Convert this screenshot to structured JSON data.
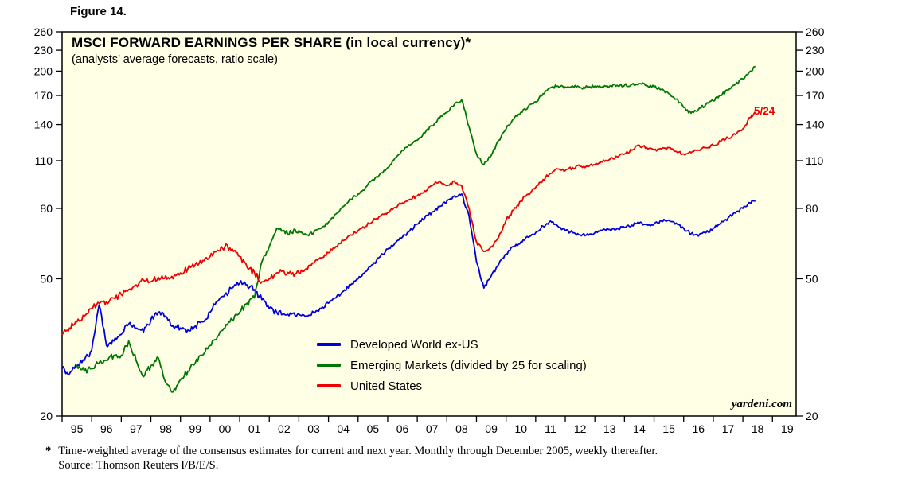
{
  "figure_label": "Figure 14.",
  "chart": {
    "title": "MSCI FORWARD EARNINGS PER SHARE (in local currency)*",
    "subtitle": "(analysts’ average forecasts, ratio scale)",
    "watermark": "yardeni.com",
    "annotation": "5/24",
    "colors": {
      "plot_bg": "#ffffe6",
      "border": "#000000",
      "developed": "#0000dd",
      "emerging": "#007700",
      "us": "#ee0000"
    }
  },
  "legend": [
    {
      "label": "Developed World ex-US",
      "color": "#0000dd"
    },
    {
      "label": "Emerging Markets (divided by 25 for scaling)",
      "color": "#007700"
    },
    {
      "label": "United States",
      "color": "#ee0000"
    }
  ],
  "footnote": {
    "marker": "*",
    "line1": "Time-weighted average of the consensus estimates for current and next year. Monthly through December 2005, weekly thereafter.",
    "line2": "Source: Thomson Reuters I/B/E/S."
  },
  "chart_data": {
    "type": "line",
    "scale": "log",
    "title": "MSCI FORWARD EARNINGS PER SHARE (in local currency)",
    "subtitle": "analysts' average forecasts, ratio scale",
    "ylim": [
      20,
      260
    ],
    "yticks": [
      20,
      50,
      80,
      110,
      140,
      170,
      200,
      230,
      260
    ],
    "xlim": [
      1995,
      2019.8
    ],
    "xtick_labels": [
      "95",
      "96",
      "97",
      "98",
      "99",
      "00",
      "01",
      "02",
      "03",
      "04",
      "05",
      "06",
      "07",
      "08",
      "09",
      "10",
      "11",
      "12",
      "13",
      "14",
      "15",
      "16",
      "17",
      "18",
      "19"
    ],
    "annotation": {
      "text": "5/24",
      "x": 2018.4,
      "y": 152,
      "series": "United States"
    },
    "x": [
      1995.0,
      1995.25,
      1995.5,
      1995.75,
      1996.0,
      1996.25,
      1996.5,
      1996.75,
      1997.0,
      1997.25,
      1997.5,
      1997.75,
      1998.0,
      1998.25,
      1998.5,
      1998.75,
      1999.0,
      1999.25,
      1999.5,
      1999.75,
      2000.0,
      2000.25,
      2000.5,
      2000.75,
      2001.0,
      2001.25,
      2001.5,
      2001.75,
      2002.0,
      2002.25,
      2002.5,
      2002.75,
      2003.0,
      2003.25,
      2003.5,
      2003.75,
      2004.0,
      2004.25,
      2004.5,
      2004.75,
      2005.0,
      2005.25,
      2005.5,
      2005.75,
      2006.0,
      2006.25,
      2006.5,
      2006.75,
      2007.0,
      2007.25,
      2007.5,
      2007.75,
      2008.0,
      2008.25,
      2008.5,
      2008.75,
      2009.0,
      2009.25,
      2009.5,
      2009.75,
      2010.0,
      2010.25,
      2010.5,
      2010.75,
      2011.0,
      2011.25,
      2011.5,
      2011.75,
      2012.0,
      2012.25,
      2012.5,
      2012.75,
      2013.0,
      2013.25,
      2013.5,
      2013.75,
      2014.0,
      2014.25,
      2014.5,
      2014.75,
      2015.0,
      2015.25,
      2015.5,
      2015.75,
      2016.0,
      2016.25,
      2016.5,
      2016.75,
      2017.0,
      2017.25,
      2017.5,
      2017.75,
      2018.0,
      2018.25,
      2018.4
    ],
    "series": [
      {
        "name": "Developed World ex-US",
        "color": "#0000dd",
        "values": [
          27.5,
          26.5,
          28,
          29,
          31,
          42,
          32,
          33,
          34.5,
          37,
          36,
          35,
          38,
          40,
          39,
          36.5,
          36,
          35.5,
          36.5,
          37.5,
          40,
          43,
          45,
          47,
          48.5,
          48,
          46.5,
          43.5,
          41,
          40,
          39.5,
          39.5,
          39.5,
          39,
          40,
          41,
          42.5,
          44,
          46,
          48,
          50,
          52.5,
          55,
          58,
          61,
          63.5,
          66,
          69,
          72,
          75,
          78,
          81,
          84,
          87,
          88,
          76,
          56,
          47,
          51,
          55,
          59,
          62,
          64,
          66,
          68,
          71,
          73.5,
          71,
          69,
          68,
          67,
          67.5,
          68,
          69,
          69.5,
          70,
          70.5,
          71.5,
          72.5,
          72,
          72,
          73.5,
          74,
          72.5,
          70,
          67.5,
          66.5,
          68,
          70,
          72.5,
          75,
          77.5,
          80,
          83,
          84
        ]
      },
      {
        "name": "Emerging Markets (divided by 25 for scaling)",
        "color": "#007700",
        "values": [
          null,
          null,
          28,
          27,
          27.5,
          28.5,
          29,
          30,
          30,
          33,
          29,
          26,
          28,
          29.5,
          25,
          23.5,
          25.5,
          27,
          28.5,
          30,
          32,
          34,
          36,
          38,
          40,
          42.5,
          44,
          56,
          62,
          70,
          69,
          68,
          69,
          67,
          68,
          70,
          73,
          77,
          81,
          85,
          88,
          92,
          97,
          101,
          105,
          112,
          118,
          122,
          126,
          132,
          139,
          146,
          152,
          160,
          165,
          138,
          115,
          107,
          114,
          126,
          136,
          145,
          152,
          158,
          163,
          172,
          179,
          181,
          180,
          181,
          179,
          180,
          181,
          180,
          181,
          182,
          182,
          183,
          184,
          182,
          180,
          177,
          172,
          166,
          157,
          151,
          155,
          160,
          164,
          170,
          176,
          183,
          190,
          200,
          206
        ]
      },
      {
        "name": "United States",
        "color": "#ee0000",
        "values": [
          34.5,
          36,
          37.5,
          39,
          41,
          42.5,
          43,
          44,
          45,
          46.5,
          48,
          49.5,
          49,
          50.5,
          51,
          50,
          52,
          53.5,
          55,
          56.5,
          58,
          60.5,
          62,
          61,
          58,
          54,
          52,
          49,
          50,
          52,
          52.5,
          51.5,
          52,
          53.5,
          55.5,
          57.5,
          59.5,
          62,
          64.5,
          67,
          69,
          71,
          73.5,
          76,
          78,
          80.5,
          83,
          85,
          87,
          90,
          93,
          96,
          93,
          96,
          93,
          80,
          64,
          60,
          62,
          66,
          74,
          79,
          84,
          88,
          92,
          97,
          101,
          104,
          103,
          105,
          106,
          106,
          107,
          109,
          111,
          113,
          115,
          118,
          122,
          120,
          118,
          119,
          120,
          117,
          115,
          116,
          118,
          120,
          122,
          125,
          128,
          131,
          136,
          147,
          152
        ]
      }
    ]
  }
}
